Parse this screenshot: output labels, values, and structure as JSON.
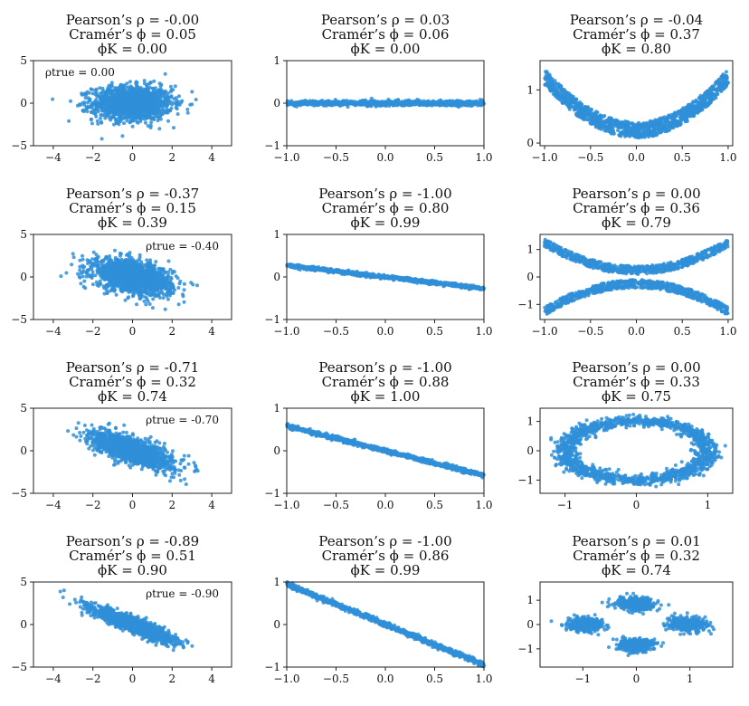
{
  "figure": {
    "pointColor": "#2f8fd8",
    "rows": 4,
    "cols": 3
  },
  "chart_data": [
    {
      "type": "scatter",
      "pattern": "gaussian",
      "rho": 0.0,
      "title": [
        "Pearson’s ρ = -0.00",
        "Cramér’s ϕ = 0.05",
        "ϕK = 0.00"
      ],
      "annotation": {
        "text": "ρtrue = 0.00",
        "position": "top-left"
      },
      "xlim": [
        -5,
        5
      ],
      "ylim": [
        -5,
        5
      ],
      "xticks": [
        -4,
        -2,
        0,
        2,
        4
      ],
      "yticks": [
        -5,
        0,
        5
      ],
      "grid": false
    },
    {
      "type": "scatter",
      "pattern": "flat-line",
      "slope": 0.0,
      "noise": 0.03,
      "title": [
        "Pearson’s ρ = 0.03",
        "Cramér’s ϕ = 0.06",
        "ϕK = 0.00"
      ],
      "xlim": [
        -1,
        1
      ],
      "ylim": [
        -1,
        1
      ],
      "xticks": [
        -1.0,
        -0.5,
        0.0,
        0.5,
        1.0
      ],
      "yticks": [
        -1,
        0,
        1
      ],
      "grid": false
    },
    {
      "type": "scatter",
      "pattern": "parabola",
      "title": [
        "Pearson’s ρ = -0.04",
        "Cramér’s ϕ = 0.37",
        "ϕK = 0.80"
      ],
      "xlim": [
        -1.05,
        1.05
      ],
      "ylim": [
        -0.05,
        1.55
      ],
      "xticks": [
        -1.0,
        -0.5,
        0.0,
        0.5,
        1.0
      ],
      "yticks": [
        0,
        1
      ],
      "grid": false
    },
    {
      "type": "scatter",
      "pattern": "gaussian",
      "rho": -0.4,
      "title": [
        "Pearson’s ρ = -0.37",
        "Cramér’s ϕ = 0.15",
        "ϕK = 0.39"
      ],
      "annotation": {
        "text": "ρtrue = -0.40",
        "position": "top-right"
      },
      "xlim": [
        -5,
        5
      ],
      "ylim": [
        -5,
        5
      ],
      "xticks": [
        -4,
        -2,
        0,
        2,
        4
      ],
      "yticks": [
        -5,
        0,
        5
      ],
      "grid": false
    },
    {
      "type": "scatter",
      "pattern": "sloped-line",
      "slope": -0.27,
      "noise": 0.02,
      "title": [
        "Pearson’s ρ = -1.00",
        "Cramér’s ϕ = 0.80",
        "ϕK = 0.99"
      ],
      "xlim": [
        -1,
        1
      ],
      "ylim": [
        -1,
        1
      ],
      "xticks": [
        -1.0,
        -0.5,
        0.0,
        0.5,
        1.0
      ],
      "yticks": [
        -1,
        0,
        1
      ],
      "grid": false
    },
    {
      "type": "scatter",
      "pattern": "cross-parabolas",
      "title": [
        "Pearson’s ρ = 0.00",
        "Cramér’s ϕ = 0.36",
        "ϕK = 0.79"
      ],
      "xlim": [
        -1.05,
        1.05
      ],
      "ylim": [
        -1.55,
        1.55
      ],
      "xticks": [
        -1.0,
        -0.5,
        0.0,
        0.5,
        1.0
      ],
      "yticks": [
        -1,
        0,
        1
      ],
      "grid": false
    },
    {
      "type": "scatter",
      "pattern": "gaussian",
      "rho": -0.7,
      "title": [
        "Pearson’s ρ = -0.71",
        "Cramér’s ϕ = 0.32",
        "ϕK = 0.74"
      ],
      "annotation": {
        "text": "ρtrue = -0.70",
        "position": "top-right"
      },
      "xlim": [
        -5,
        5
      ],
      "ylim": [
        -5,
        5
      ],
      "xticks": [
        -4,
        -2,
        0,
        2,
        4
      ],
      "yticks": [
        -5,
        0,
        5
      ],
      "grid": false
    },
    {
      "type": "scatter",
      "pattern": "sloped-line",
      "slope": -0.58,
      "noise": 0.025,
      "title": [
        "Pearson’s ρ = -1.00",
        "Cramér’s ϕ = 0.88",
        "ϕK = 1.00"
      ],
      "xlim": [
        -1,
        1
      ],
      "ylim": [
        -1,
        1
      ],
      "xticks": [
        -1.0,
        -0.5,
        0.0,
        0.5,
        1.0
      ],
      "yticks": [
        -1,
        0,
        1
      ],
      "grid": false
    },
    {
      "type": "scatter",
      "pattern": "ring",
      "title": [
        "Pearson’s ρ = 0.00",
        "Cramér’s ϕ = 0.33",
        "ϕK = 0.75"
      ],
      "xlim": [
        -1.35,
        1.35
      ],
      "ylim": [
        -1.45,
        1.45
      ],
      "xticks": [
        -1,
        0,
        1
      ],
      "yticks": [
        -1,
        0,
        1
      ],
      "grid": false
    },
    {
      "type": "scatter",
      "pattern": "gaussian",
      "rho": -0.9,
      "title": [
        "Pearson’s ρ = -0.89",
        "Cramér’s ϕ = 0.51",
        "ϕK = 0.90"
      ],
      "annotation": {
        "text": "ρtrue = -0.90",
        "position": "top-right"
      },
      "xlim": [
        -5,
        5
      ],
      "ylim": [
        -5,
        5
      ],
      "xticks": [
        -4,
        -2,
        0,
        2,
        4
      ],
      "yticks": [
        -5,
        0,
        5
      ],
      "grid": false
    },
    {
      "type": "scatter",
      "pattern": "sloped-line",
      "slope": -0.95,
      "noise": 0.03,
      "title": [
        "Pearson’s ρ = -1.00",
        "Cramér’s ϕ = 0.86",
        "ϕK = 0.99"
      ],
      "xlim": [
        -1,
        1
      ],
      "ylim": [
        -1,
        1
      ],
      "xticks": [
        -1.0,
        -0.5,
        0.0,
        0.5,
        1.0
      ],
      "yticks": [
        -1,
        0,
        1
      ],
      "grid": false
    },
    {
      "type": "scatter",
      "pattern": "four-clusters",
      "title": [
        "Pearson’s ρ = 0.01",
        "Cramér’s ϕ = 0.32",
        "ϕK = 0.74"
      ],
      "xlim": [
        -1.8,
        1.8
      ],
      "ylim": [
        -1.75,
        1.75
      ],
      "xticks": [
        -1,
        0,
        1
      ],
      "yticks": [
        -1,
        0,
        1
      ],
      "grid": false
    }
  ]
}
